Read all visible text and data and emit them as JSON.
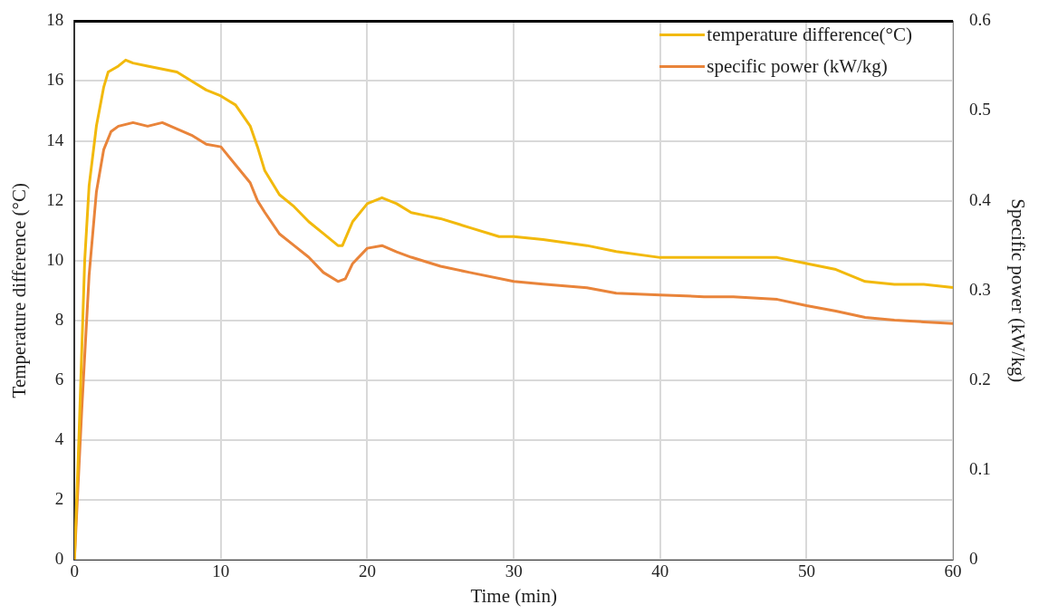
{
  "chart_data": {
    "type": "line",
    "xlabel": "Time (min)",
    "ylabel": "Temperature difference (°C)",
    "y2label": "Specific power (kW/kg)",
    "xlim": [
      0,
      60
    ],
    "xticks": [
      0,
      10,
      20,
      30,
      40,
      50,
      60
    ],
    "ylim": [
      0,
      18
    ],
    "yticks": [
      0,
      2,
      4,
      6,
      8,
      10,
      12,
      14,
      16,
      18
    ],
    "y2lim": [
      0,
      0.6
    ],
    "y2ticks": [
      0,
      0.1,
      0.2,
      0.3,
      0.4,
      0.5,
      0.6
    ],
    "grid": true,
    "legend": "top right",
    "marker": "none",
    "line_style": "solid",
    "series": [
      {
        "name": "temperature difference(°C)",
        "color": "#f2b90c",
        "x": [
          0,
          0.3,
          0.7,
          1,
          1.5,
          2,
          2.3,
          3,
          3.5,
          4,
          5,
          6,
          7,
          8,
          9,
          10,
          11,
          12,
          12.5,
          13,
          14,
          15,
          16,
          17,
          18,
          18.3,
          19,
          20,
          21,
          22,
          23,
          24,
          25,
          27,
          29,
          30,
          32,
          35,
          37,
          40,
          43,
          45,
          48,
          50,
          52,
          54,
          56,
          58,
          60
        ],
        "values": [
          0,
          4,
          10,
          12.5,
          14.5,
          15.8,
          16.3,
          16.5,
          16.7,
          16.6,
          16.5,
          16.4,
          16.3,
          16,
          15.7,
          15.5,
          15.2,
          14.5,
          13.8,
          13,
          12.2,
          11.8,
          11.3,
          10.9,
          10.5,
          10.5,
          11.3,
          11.9,
          12.1,
          11.9,
          11.6,
          11.5,
          11.4,
          11.1,
          10.8,
          10.8,
          10.7,
          10.5,
          10.3,
          10.1,
          10.1,
          10.1,
          10.1,
          9.9,
          9.7,
          9.3,
          9.2,
          9.2,
          9.1
        ]
      },
      {
        "name": "specific power (kW/kg)",
        "color": "#e9843a",
        "axis": "y2",
        "x": [
          0,
          0.5,
          1,
          1.5,
          2,
          2.5,
          3,
          4,
          5,
          6,
          7,
          8,
          9,
          10,
          11,
          12,
          12.5,
          13,
          14,
          15,
          16,
          17,
          18,
          18.5,
          19,
          20,
          21,
          22,
          23,
          25,
          27,
          30,
          32,
          35,
          37,
          40,
          43,
          45,
          48,
          50,
          52,
          54,
          56,
          58,
          60
        ],
        "values": [
          0,
          0.167,
          0.317,
          0.41,
          0.457,
          0.477,
          0.483,
          0.487,
          0.483,
          0.487,
          0.48,
          0.473,
          0.463,
          0.46,
          0.44,
          0.42,
          0.4,
          0.387,
          0.363,
          0.35,
          0.337,
          0.32,
          0.31,
          0.313,
          0.33,
          0.347,
          0.35,
          0.343,
          0.337,
          0.327,
          0.32,
          0.31,
          0.307,
          0.303,
          0.297,
          0.295,
          0.293,
          0.293,
          0.29,
          0.283,
          0.277,
          0.27,
          0.267,
          0.265,
          0.263
        ]
      }
    ]
  }
}
